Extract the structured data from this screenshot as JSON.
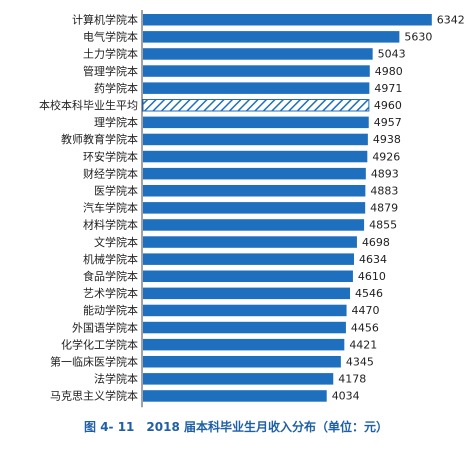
{
  "caption": "图 4- 11　2018 届本科毕业生月收入分布（单位：元）",
  "colors": {
    "bar": "#1f6fbf",
    "highlight_stroke": "#1f6fbf",
    "axis": "#444444"
  },
  "chart_data": {
    "type": "bar",
    "orientation": "horizontal",
    "title": "",
    "xlabel": "",
    "ylabel": "",
    "xlim": [
      0,
      6500
    ],
    "grid": false,
    "categories": [
      "计算机学院本",
      "电气学院本",
      "土力学院本",
      "管理学院本",
      "药学院本",
      "本校本科毕业生平均",
      "理学院本",
      "教师教育学院本",
      "环安学院本",
      "财经学院本",
      "医学院本",
      "汽车学院本",
      "材料学院本",
      "文学院本",
      "机械学院本",
      "食品学院本",
      "艺术学院本",
      "能动学院本",
      "外国语学院本",
      "化学化工学院本",
      "第一临床医学院本",
      "法学院本",
      "马克思主义学院本"
    ],
    "values": [
      6342,
      5630,
      5043,
      4980,
      4971,
      4960,
      4957,
      4938,
      4926,
      4893,
      4883,
      4879,
      4855,
      4698,
      4634,
      4610,
      4546,
      4470,
      4456,
      4421,
      4345,
      4178,
      4034
    ],
    "highlight_index": 5
  }
}
